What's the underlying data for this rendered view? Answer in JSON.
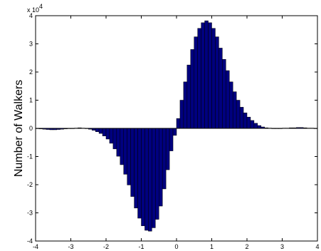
{
  "chart_data": {
    "type": "bar",
    "ylabel": "Number of Walkers",
    "y_multiplier": "x 10",
    "y_multiplier_exponent": "4",
    "xlim": [
      -4,
      4
    ],
    "ylim": [
      -40000,
      40000
    ],
    "x_ticks": [
      "-4",
      "-3",
      "-2",
      "-1",
      "0",
      "1",
      "2",
      "3",
      "4"
    ],
    "y_ticks": [
      "-4",
      "-3",
      "-2",
      "-1",
      "0",
      "1",
      "2",
      "3",
      "4"
    ],
    "bar_color": "#00007f",
    "bin_width": 0.1,
    "x": [
      -3.95,
      -3.85,
      -3.75,
      -3.65,
      -3.55,
      -3.45,
      -3.35,
      -3.25,
      -3.15,
      -3.05,
      -2.95,
      -2.85,
      -2.75,
      -2.65,
      -2.55,
      -2.45,
      -2.35,
      -2.25,
      -2.15,
      -2.05,
      -1.95,
      -1.85,
      -1.75,
      -1.65,
      -1.55,
      -1.45,
      -1.35,
      -1.25,
      -1.15,
      -1.05,
      -0.95,
      -0.85,
      -0.75,
      -0.65,
      -0.55,
      -0.45,
      -0.35,
      -0.25,
      -0.15,
      -0.05,
      0.05,
      0.15,
      0.25,
      0.35,
      0.45,
      0.55,
      0.65,
      0.75,
      0.85,
      0.95,
      1.05,
      1.15,
      1.25,
      1.35,
      1.45,
      1.55,
      1.65,
      1.75,
      1.85,
      1.95,
      2.05,
      2.15,
      2.25,
      2.35,
      2.45,
      2.55,
      2.65,
      2.75,
      2.85,
      2.95,
      3.05,
      3.15,
      3.25,
      3.35,
      3.45,
      3.55,
      3.65,
      3.75,
      3.85,
      3.95
    ],
    "values": [
      -100,
      -200,
      -300,
      -400,
      -500,
      -500,
      -400,
      -300,
      -200,
      -100,
      0,
      100,
      200,
      100,
      0,
      -300,
      -700,
      -1200,
      -1800,
      -2700,
      -3800,
      -5300,
      -7300,
      -9900,
      -12900,
      -16300,
      -20100,
      -24200,
      -28300,
      -31900,
      -34600,
      -36200,
      -36500,
      -35300,
      -32300,
      -27600,
      -21500,
      -14700,
      -8000,
      -2500,
      3500,
      10000,
      16500,
      22500,
      28000,
      32500,
      35500,
      37500,
      38200,
      37500,
      35500,
      32500,
      28500,
      24500,
      20500,
      16500,
      13000,
      10000,
      7500,
      5500,
      4000,
      2800,
      1800,
      1000,
      500,
      200,
      100,
      0,
      0,
      0,
      100,
      100,
      200,
      200,
      300,
      300,
      200,
      100,
      100,
      0
    ]
  }
}
